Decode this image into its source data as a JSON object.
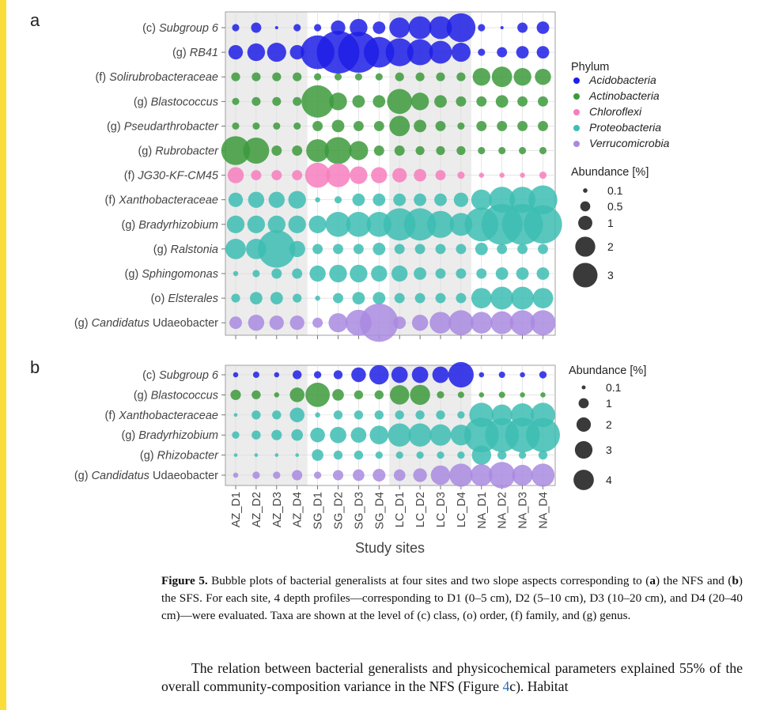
{
  "colors": {
    "Acidobacteria": "#1f1fe6",
    "Actinobacteria": "#3c9a3c",
    "Chloroflexi": "#f77ebd",
    "Proteobacteria": "#3dbdb3",
    "Verrucomicrobia": "#a98ae0",
    "shade": "#ececec",
    "ref_link": "#2a6fb0"
  },
  "figure": {
    "x_axis_title": "Study sites",
    "caption_label": "Figure 5.",
    "caption_parts": [
      " Bubble plots of bacterial generalists at four sites and two slope aspects corresponding to (",
      "a",
      ") the NFS and (",
      "b",
      ") the SFS. For each site, 4 depth profiles—corresponding to D1 (0–5 cm), D2 (5–10 cm), D3 (10–20 cm), and D4 (20–40 cm)—were evaluated. Taxa are shown at the level of (c) class, (o) order, (f) family, and (g) genus."
    ],
    "body_text_before": "The relation between bacterial generalists and physicochemical parameters explained 55% of the overall community-composition variance in the NFS (Figure ",
    "body_text_ref": "4",
    "body_text_ref_suffix": "c",
    "body_text_after": ").  Habitat"
  },
  "chart_data": [
    {
      "type": "scatter",
      "panel": "a",
      "x": [
        "AZ_D1",
        "AZ_D2",
        "AZ_D3",
        "AZ_D4",
        "SG_D1",
        "SG_D2",
        "SG_D3",
        "SG_D4",
        "LC_D1",
        "LC_D2",
        "LC_D3",
        "LC_D4",
        "NA_D1",
        "NA_D2",
        "NA_D3",
        "NA_D4"
      ],
      "shaded_sites": [
        "AZ",
        "LC"
      ],
      "taxa": [
        {
          "rank": "(c)",
          "name": "Subgroup 6",
          "italic": true,
          "phylum": "Acidobacteria",
          "values": [
            0.1,
            0.2,
            0.02,
            0.1,
            0.1,
            0.4,
            0.6,
            0.3,
            0.8,
            1.0,
            1.0,
            1.6,
            0.1,
            0.02,
            0.2,
            0.3
          ]
        },
        {
          "rank": "(g)",
          "name": "RB41",
          "italic": true,
          "phylum": "Acidobacteria",
          "values": [
            0.4,
            0.6,
            0.7,
            0.4,
            2.2,
            3.5,
            3.2,
            1.8,
            1.5,
            1.3,
            1.0,
            0.7,
            0.1,
            0.2,
            0.3,
            0.3
          ]
        },
        {
          "rank": "(f)",
          "name": "Solirubrobacteraceae",
          "italic": true,
          "phylum": "Actinobacteria",
          "values": [
            0.15,
            0.15,
            0.15,
            0.15,
            0.1,
            0.1,
            0.1,
            0.1,
            0.15,
            0.15,
            0.15,
            0.15,
            0.6,
            0.8,
            0.6,
            0.5
          ]
        },
        {
          "rank": "(g)",
          "name": "Blastococcus",
          "italic": true,
          "phylum": "Actinobacteria",
          "values": [
            0.1,
            0.15,
            0.15,
            0.15,
            2.0,
            0.6,
            0.3,
            0.3,
            1.2,
            0.6,
            0.3,
            0.2,
            0.2,
            0.3,
            0.2,
            0.2
          ]
        },
        {
          "rank": "(g)",
          "name": "Pseudarthrobacter",
          "italic": true,
          "phylum": "Actinobacteria",
          "values": [
            0.1,
            0.1,
            0.1,
            0.1,
            0.2,
            0.3,
            0.2,
            0.2,
            0.8,
            0.3,
            0.2,
            0.1,
            0.2,
            0.2,
            0.2,
            0.2
          ]
        },
        {
          "rank": "(g)",
          "name": "Rubrobacter",
          "italic": true,
          "phylum": "Actinobacteria",
          "values": [
            1.6,
            1.3,
            0.2,
            0.2,
            1.0,
            1.4,
            0.7,
            0.2,
            0.2,
            0.15,
            0.15,
            0.15,
            0.1,
            0.1,
            0.1,
            0.1
          ]
        },
        {
          "rank": "(f)",
          "name": "JG30-KF-CM45",
          "italic": true,
          "phylum": "Chloroflexi",
          "values": [
            0.5,
            0.2,
            0.2,
            0.2,
            1.2,
            1.1,
            0.6,
            0.5,
            0.4,
            0.3,
            0.2,
            0.1,
            0.05,
            0.05,
            0.05,
            0.1
          ]
        },
        {
          "rank": "(f)",
          "name": "Xanthobacteraceae",
          "italic": true,
          "phylum": "Proteobacteria",
          "values": [
            0.4,
            0.5,
            0.5,
            0.6,
            0.05,
            0.1,
            0.3,
            0.3,
            0.3,
            0.3,
            0.3,
            0.4,
            0.8,
            1.3,
            1.3,
            1.6
          ]
        },
        {
          "rank": "(g)",
          "name": "Bradyrhizobium",
          "italic": true,
          "phylum": "Proteobacteria",
          "values": [
            0.6,
            0.6,
            0.6,
            0.6,
            0.6,
            1.2,
            1.2,
            1.2,
            2.0,
            2.0,
            1.4,
            1.0,
            2.2,
            3.2,
            3.2,
            2.8
          ]
        },
        {
          "rank": "(g)",
          "name": "Ralstonia",
          "italic": true,
          "phylum": "Proteobacteria",
          "values": [
            0.8,
            0.8,
            2.7,
            0.5,
            0.2,
            0.2,
            0.2,
            0.3,
            0.2,
            0.2,
            0.2,
            0.2,
            0.3,
            0.2,
            0.2,
            0.2
          ]
        },
        {
          "rank": "(g)",
          "name": "Sphingomonas",
          "italic": true,
          "phylum": "Proteobacteria",
          "values": [
            0.05,
            0.1,
            0.2,
            0.2,
            0.5,
            0.6,
            0.6,
            0.5,
            0.5,
            0.3,
            0.2,
            0.2,
            0.2,
            0.3,
            0.3,
            0.3
          ]
        },
        {
          "rank": "(o)",
          "name": "Elsterales",
          "italic": true,
          "phylum": "Proteobacteria",
          "values": [
            0.15,
            0.3,
            0.3,
            0.15,
            0.05,
            0.2,
            0.3,
            0.3,
            0.2,
            0.2,
            0.2,
            0.2,
            0.8,
            1.0,
            1.0,
            0.8
          ]
        },
        {
          "rank": "(g)",
          "name": "Candidatus",
          "name_suffix": " Udaeobacter",
          "italic": true,
          "phylum": "Verrucomicrobia",
          "values": [
            0.3,
            0.5,
            0.4,
            0.4,
            0.2,
            0.7,
            1.3,
            2.8,
            0.3,
            0.5,
            0.9,
            1.2,
            0.9,
            1.0,
            1.2,
            1.2
          ]
        }
      ],
      "legend": {
        "phylum_title": "Phylum",
        "phyla": [
          "Acidobacteria",
          "Actinobacteria",
          "Chloroflexi",
          "Proteobacteria",
          "Verrucomicrobia"
        ],
        "abundance_title": "Abundance [%]",
        "abundance_keys": [
          0.1,
          0.5,
          1,
          2,
          3
        ],
        "abundance_labels": [
          "0.1",
          "0.5",
          "1",
          "2",
          "3"
        ]
      }
    },
    {
      "type": "scatter",
      "panel": "b",
      "x": [
        "AZ_D1",
        "AZ_D2",
        "AZ_D3",
        "AZ_D4",
        "SG_D1",
        "SG_D2",
        "SG_D3",
        "SG_D4",
        "LC_D1",
        "LC_D2",
        "LC_D3",
        "LC_D4",
        "NA_D1",
        "NA_D2",
        "NA_D3",
        "NA_D4"
      ],
      "shaded_sites": [
        "AZ",
        "LC"
      ],
      "taxa": [
        {
          "rank": "(c)",
          "name": "Subgroup 6",
          "italic": true,
          "phylum": "Acidobacteria",
          "values": [
            0.1,
            0.15,
            0.1,
            0.3,
            0.2,
            0.3,
            0.8,
            1.4,
            1.0,
            1.0,
            1.0,
            2.4,
            0.1,
            0.15,
            0.1,
            0.2
          ]
        },
        {
          "rank": "(g)",
          "name": "Blastococcus",
          "italic": true,
          "phylum": "Actinobacteria",
          "values": [
            0.4,
            0.3,
            0.1,
            0.8,
            2.2,
            0.5,
            0.3,
            0.3,
            1.4,
            1.5,
            0.2,
            0.15,
            0.1,
            0.15,
            0.1,
            0.1
          ]
        },
        {
          "rank": "(f)",
          "name": "Xanthobacteraceae",
          "italic": true,
          "phylum": "Proteobacteria",
          "values": [
            0.05,
            0.3,
            0.3,
            0.8,
            0.1,
            0.3,
            0.3,
            0.3,
            0.3,
            0.3,
            0.3,
            0.2,
            2.2,
            1.6,
            2.0,
            2.2
          ]
        },
        {
          "rank": "(g)",
          "name": "Bradyrhizobium",
          "italic": true,
          "phylum": "Proteobacteria",
          "values": [
            0.2,
            0.3,
            0.4,
            0.5,
            0.8,
            1.0,
            0.9,
            1.3,
            2.0,
            2.0,
            1.7,
            1.6,
            4.5,
            4.3,
            4.5,
            4.3
          ]
        },
        {
          "rank": "(g)",
          "name": "Rhizobacter",
          "italic": true,
          "phylum": "Proteobacteria",
          "values": [
            0.05,
            0.05,
            0.05,
            0.05,
            0.5,
            0.3,
            0.3,
            0.2,
            0.2,
            0.2,
            0.2,
            0.2,
            1.4,
            0.3,
            0.2,
            0.3
          ]
        },
        {
          "rank": "(g)",
          "name": "Candidatus",
          "name_suffix": " Udaeobacter",
          "italic": true,
          "phylum": "Verrucomicrobia",
          "values": [
            0.1,
            0.2,
            0.2,
            0.4,
            0.2,
            0.4,
            0.5,
            0.6,
            0.5,
            0.7,
            1.4,
            2.0,
            1.8,
            2.6,
            1.6,
            2.0
          ]
        }
      ],
      "legend": {
        "abundance_title": "Abundance [%]",
        "abundance_keys": [
          0.1,
          1,
          2,
          3,
          4
        ],
        "abundance_labels": [
          "0.1",
          "1",
          "2",
          "3",
          "4"
        ]
      }
    }
  ]
}
